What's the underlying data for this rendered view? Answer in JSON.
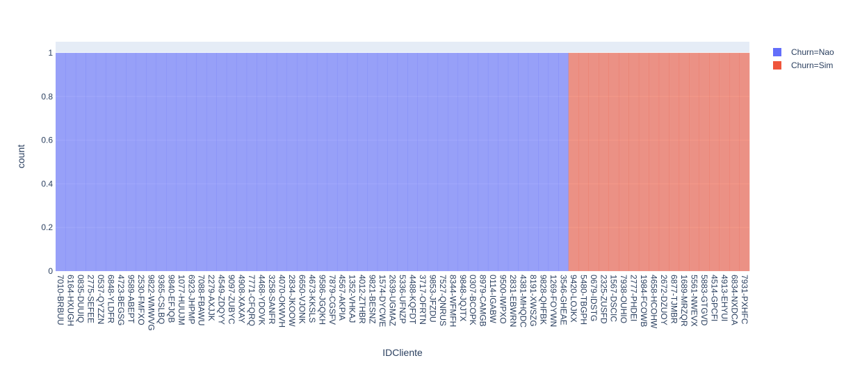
{
  "chart_data": {
    "type": "histogram",
    "x_label": "IDCliente",
    "y_label": "count",
    "categories": [
      "7010-BRBUU",
      "6164-HXUGH",
      "0835-DUUIQ",
      "2775-SEFEE",
      "0537-QYZZN",
      "6848-YLDFR",
      "4723-BEGSG",
      "9589-ABEPT",
      "2530-FMFXO",
      "9822-WMWVG",
      "9365-CSLBQ",
      "9840-EFJQB",
      "1077-HUUJM",
      "6923-JHPMP",
      "7088-FBAWU",
      "2279-AXJJK",
      "4549-ZDQYY",
      "9097-ZUBYC",
      "4908-XAXAY",
      "7771-CFQRQ",
      "4468-YDOVK",
      "3258-SANFR",
      "4070-OKWVH",
      "2834-JKOOW",
      "6650-VJONK",
      "4673-KKSLS",
      "9586-JGQKH",
      "7879-CGSFV",
      "4567-AKPIA",
      "1352-VHKAJ",
      "4012-ZTHBR",
      "9821-BESNZ",
      "1574-DYCWE",
      "2639-UGMAZ",
      "5336-UFNZP",
      "4488-KQFDT",
      "3717-OFRTN",
      "9853-JFZDU",
      "7527-QNRUS",
      "8344-WFMFH",
      "9848-JQJTX",
      "0307-BCOPK",
      "8979-CAMGB",
      "0114-IGABW",
      "9500-IWPXO",
      "2831-EBWRN",
      "4381-MHQDC",
      "8191-XWSZG",
      "9828-QHFBK",
      "1269-FOYWN",
      "3546-GHEAE",
      "9420-LOJKX",
      "5480-TBGPH",
      "0679-IDSTG",
      "2325-ZUSFD",
      "1567-DSCIC",
      "7938-OUHIO",
      "2777-PHDEI",
      "1984-FCOWB",
      "4658-HCOHW",
      "2672-DZUOY",
      "6877-TJMBR",
      "1689-MRZQR",
      "5561-NWEVX",
      "5883-GTGVD",
      "4514-GPCFI",
      "4913-EHYUI",
      "6834-NXDCA",
      "7931-PXHFC"
    ],
    "series": [
      {
        "name": "Churn=Nao",
        "color": "#636efa",
        "values": [
          1,
          1,
          1,
          1,
          1,
          1,
          1,
          1,
          1,
          1,
          1,
          1,
          1,
          1,
          1,
          1,
          1,
          1,
          1,
          1,
          1,
          1,
          1,
          1,
          1,
          1,
          1,
          1,
          1,
          1,
          1,
          1,
          1,
          1,
          1,
          1,
          1,
          1,
          1,
          1,
          1,
          1,
          1,
          1,
          1,
          1,
          1,
          1,
          1,
          1,
          1,
          null,
          null,
          null,
          null,
          null,
          null,
          null,
          null,
          null,
          null,
          null,
          null,
          null,
          null,
          null,
          null,
          null,
          null
        ]
      },
      {
        "name": "Churn=Sim",
        "color": "#EF553B",
        "values": [
          null,
          null,
          null,
          null,
          null,
          null,
          null,
          null,
          null,
          null,
          null,
          null,
          null,
          null,
          null,
          null,
          null,
          null,
          null,
          null,
          null,
          null,
          null,
          null,
          null,
          null,
          null,
          null,
          null,
          null,
          null,
          null,
          null,
          null,
          null,
          null,
          null,
          null,
          null,
          null,
          null,
          null,
          null,
          null,
          null,
          null,
          null,
          null,
          null,
          null,
          null,
          1,
          1,
          1,
          1,
          1,
          1,
          1,
          1,
          1,
          1,
          1,
          1,
          1,
          1,
          1,
          1,
          1,
          1
        ]
      }
    ],
    "ylim": [
      0,
      1.051
    ],
    "yticks": [
      0,
      0.2,
      0.4,
      0.6,
      0.8,
      1
    ],
    "grid": true
  }
}
